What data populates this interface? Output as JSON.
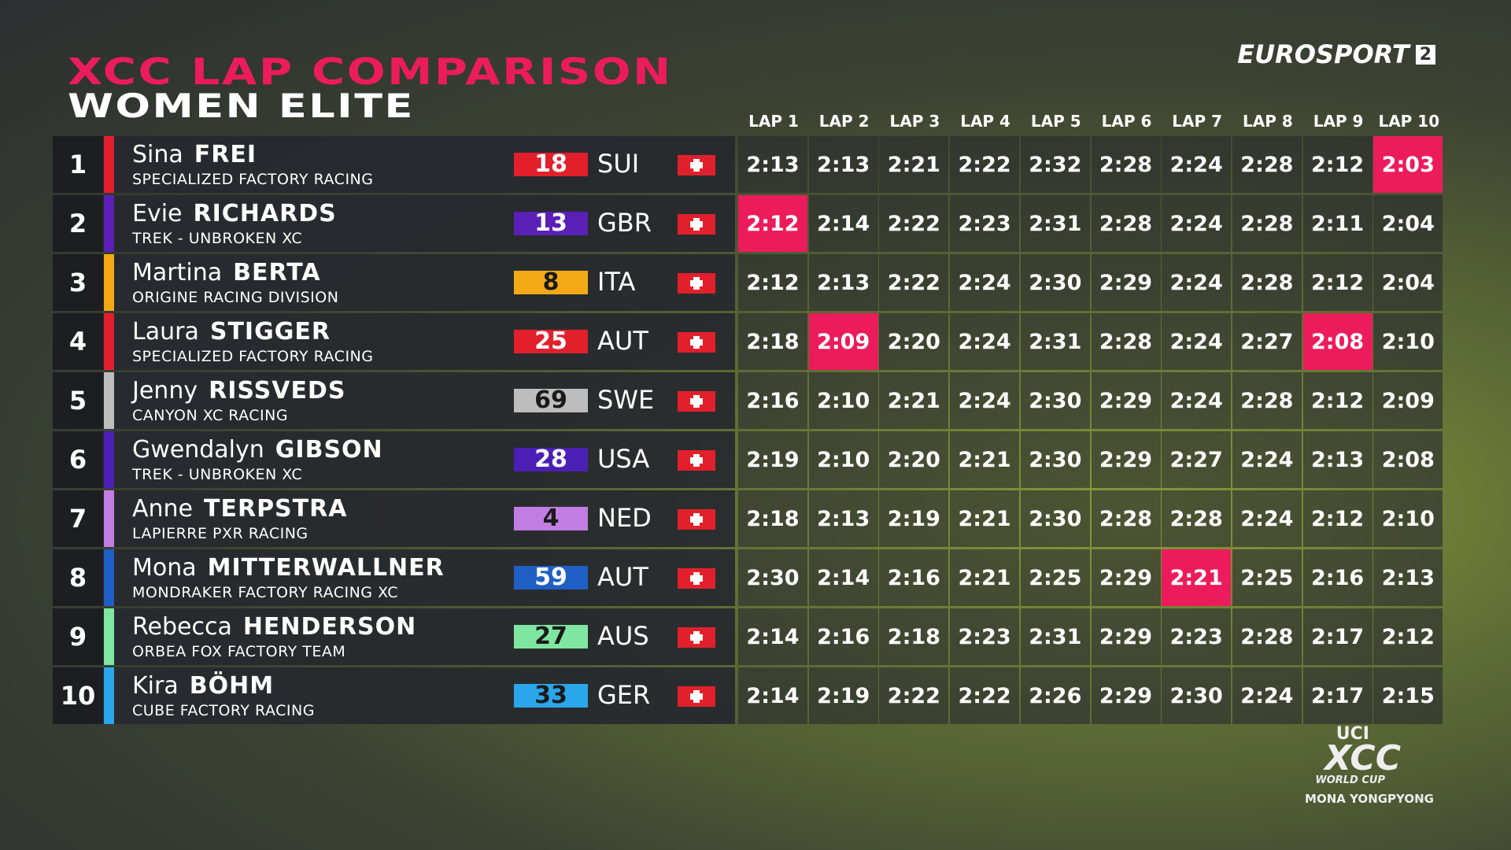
{
  "header": {
    "title": "XCC LAP COMPARISON",
    "subtitle": "WOMEN ELITE"
  },
  "broadcaster": {
    "name": "EUROSPORT",
    "channel": "2"
  },
  "event_logo": {
    "org": "UCI",
    "series": "XCC",
    "cup": "WORLD CUP",
    "venue": "MONA YONGPYONG"
  },
  "table": {
    "lap_headers": [
      "LAP 1",
      "LAP 2",
      "LAP 3",
      "LAP 4",
      "LAP 5",
      "LAP 6",
      "LAP 7",
      "LAP 8",
      "LAP 9",
      "LAP 10"
    ],
    "highlight_color": "#ec1c5c",
    "rows": [
      {
        "position": "1",
        "first_name": "Sina",
        "last_name": "FREI",
        "team": "SPECIALIZED FACTORY RACING",
        "number": "18",
        "country": "SUI",
        "color": "#e2202c",
        "text_color": "#ffffff",
        "laps": [
          "2:13",
          "2:13",
          "2:21",
          "2:22",
          "2:32",
          "2:28",
          "2:24",
          "2:28",
          "2:12",
          "2:03"
        ],
        "highlighted": [
          9
        ]
      },
      {
        "position": "2",
        "first_name": "Evie",
        "last_name": "RICHARDS",
        "team": "TREK - UNBROKEN XC",
        "number": "13",
        "country": "GBR",
        "color": "#5a1fb4",
        "text_color": "#ffffff",
        "laps": [
          "2:12",
          "2:14",
          "2:22",
          "2:23",
          "2:31",
          "2:28",
          "2:24",
          "2:28",
          "2:11",
          "2:04"
        ],
        "highlighted": [
          0
        ]
      },
      {
        "position": "3",
        "first_name": "Martina",
        "last_name": "BERTA",
        "team": "ORIGINE RACING DIVISION",
        "number": "8",
        "country": "ITA",
        "color": "#f4aa16",
        "text_color": "#1a1a1a",
        "laps": [
          "2:12",
          "2:13",
          "2:22",
          "2:24",
          "2:30",
          "2:29",
          "2:24",
          "2:28",
          "2:12",
          "2:04"
        ],
        "highlighted": []
      },
      {
        "position": "4",
        "first_name": "Laura",
        "last_name": "STIGGER",
        "team": "SPECIALIZED FACTORY RACING",
        "number": "25",
        "country": "AUT",
        "color": "#e2202c",
        "text_color": "#ffffff",
        "laps": [
          "2:18",
          "2:09",
          "2:20",
          "2:24",
          "2:31",
          "2:28",
          "2:24",
          "2:27",
          "2:08",
          "2:10"
        ],
        "highlighted": [
          1,
          8
        ]
      },
      {
        "position": "5",
        "first_name": "Jenny",
        "last_name": "RISSVEDS",
        "team": "CANYON XC RACING",
        "number": "69",
        "country": "SWE",
        "color": "#bdbdbd",
        "text_color": "#1a1a1a",
        "laps": [
          "2:16",
          "2:10",
          "2:21",
          "2:24",
          "2:30",
          "2:29",
          "2:24",
          "2:28",
          "2:12",
          "2:09"
        ],
        "highlighted": []
      },
      {
        "position": "6",
        "first_name": "Gwendalyn",
        "last_name": "GIBSON",
        "team": "TREK - UNBROKEN XC",
        "number": "28",
        "country": "USA",
        "color": "#4c1fb4",
        "text_color": "#ffffff",
        "laps": [
          "2:19",
          "2:10",
          "2:20",
          "2:21",
          "2:30",
          "2:29",
          "2:27",
          "2:24",
          "2:13",
          "2:08"
        ],
        "highlighted": []
      },
      {
        "position": "7",
        "first_name": "Anne",
        "last_name": "TERPSTRA",
        "team": "LAPIERRE PXR RACING",
        "number": "4",
        "country": "NED",
        "color": "#c27de2",
        "text_color": "#1a1a1a",
        "laps": [
          "2:18",
          "2:13",
          "2:19",
          "2:21",
          "2:30",
          "2:28",
          "2:28",
          "2:24",
          "2:12",
          "2:10"
        ],
        "highlighted": []
      },
      {
        "position": "8",
        "first_name": "Mona",
        "last_name": "MITTERWALLNER",
        "team": "MONDRAKER FACTORY RACING XC",
        "number": "59",
        "country": "AUT",
        "color": "#1f5fc4",
        "text_color": "#ffffff",
        "laps": [
          "2:30",
          "2:14",
          "2:16",
          "2:21",
          "2:25",
          "2:29",
          "2:21",
          "2:25",
          "2:16",
          "2:13"
        ],
        "highlighted": [
          6
        ]
      },
      {
        "position": "9",
        "first_name": "Rebecca",
        "last_name": "HENDERSON",
        "team": "ORBEA FOX FACTORY TEAM",
        "number": "27",
        "country": "AUS",
        "color": "#7fe6a2",
        "text_color": "#1a1a1a",
        "laps": [
          "2:14",
          "2:16",
          "2:18",
          "2:23",
          "2:31",
          "2:29",
          "2:23",
          "2:28",
          "2:17",
          "2:12"
        ],
        "highlighted": []
      },
      {
        "position": "10",
        "first_name": "Kira",
        "last_name": "BÖHM",
        "team": "CUBE FACTORY RACING",
        "number": "33",
        "country": "GER",
        "color": "#2aa6ea",
        "text_color": "#1a1a1a",
        "laps": [
          "2:14",
          "2:19",
          "2:22",
          "2:22",
          "2:26",
          "2:29",
          "2:30",
          "2:24",
          "2:17",
          "2:15"
        ],
        "highlighted": []
      }
    ]
  }
}
